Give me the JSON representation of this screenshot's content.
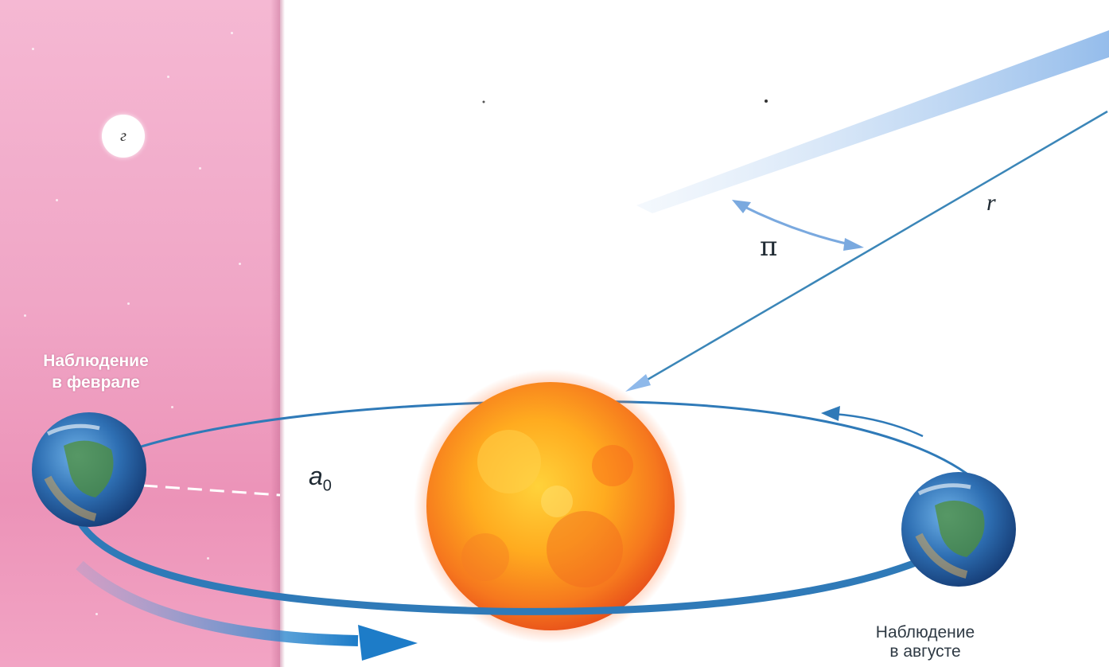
{
  "diagram": {
    "panel_label": "г",
    "observation_left": [
      "Наблюдение",
      "в феврале"
    ],
    "observation_right": [
      "Наблюдение",
      "в августе"
    ],
    "symbol_pi": "π",
    "symbol_r": "r",
    "symbol_a": "a",
    "symbol_a_subscript": "0"
  },
  "colors": {
    "panel_pink": "#f0a6c6",
    "orbit_blue": "#2f7ab8",
    "ray_light_blue": "#9fc6ee",
    "ray_line": "#3b86b8",
    "sun_core": "#ffb21c",
    "sun_edge": "#ef5a1c"
  },
  "icons": {
    "earth_left": "earth-icon",
    "earth_right": "earth-icon",
    "sun": "sun-icon",
    "parallax_arrow": "double-arrow-icon",
    "orbit_direction_arrow": "arrow-icon"
  }
}
